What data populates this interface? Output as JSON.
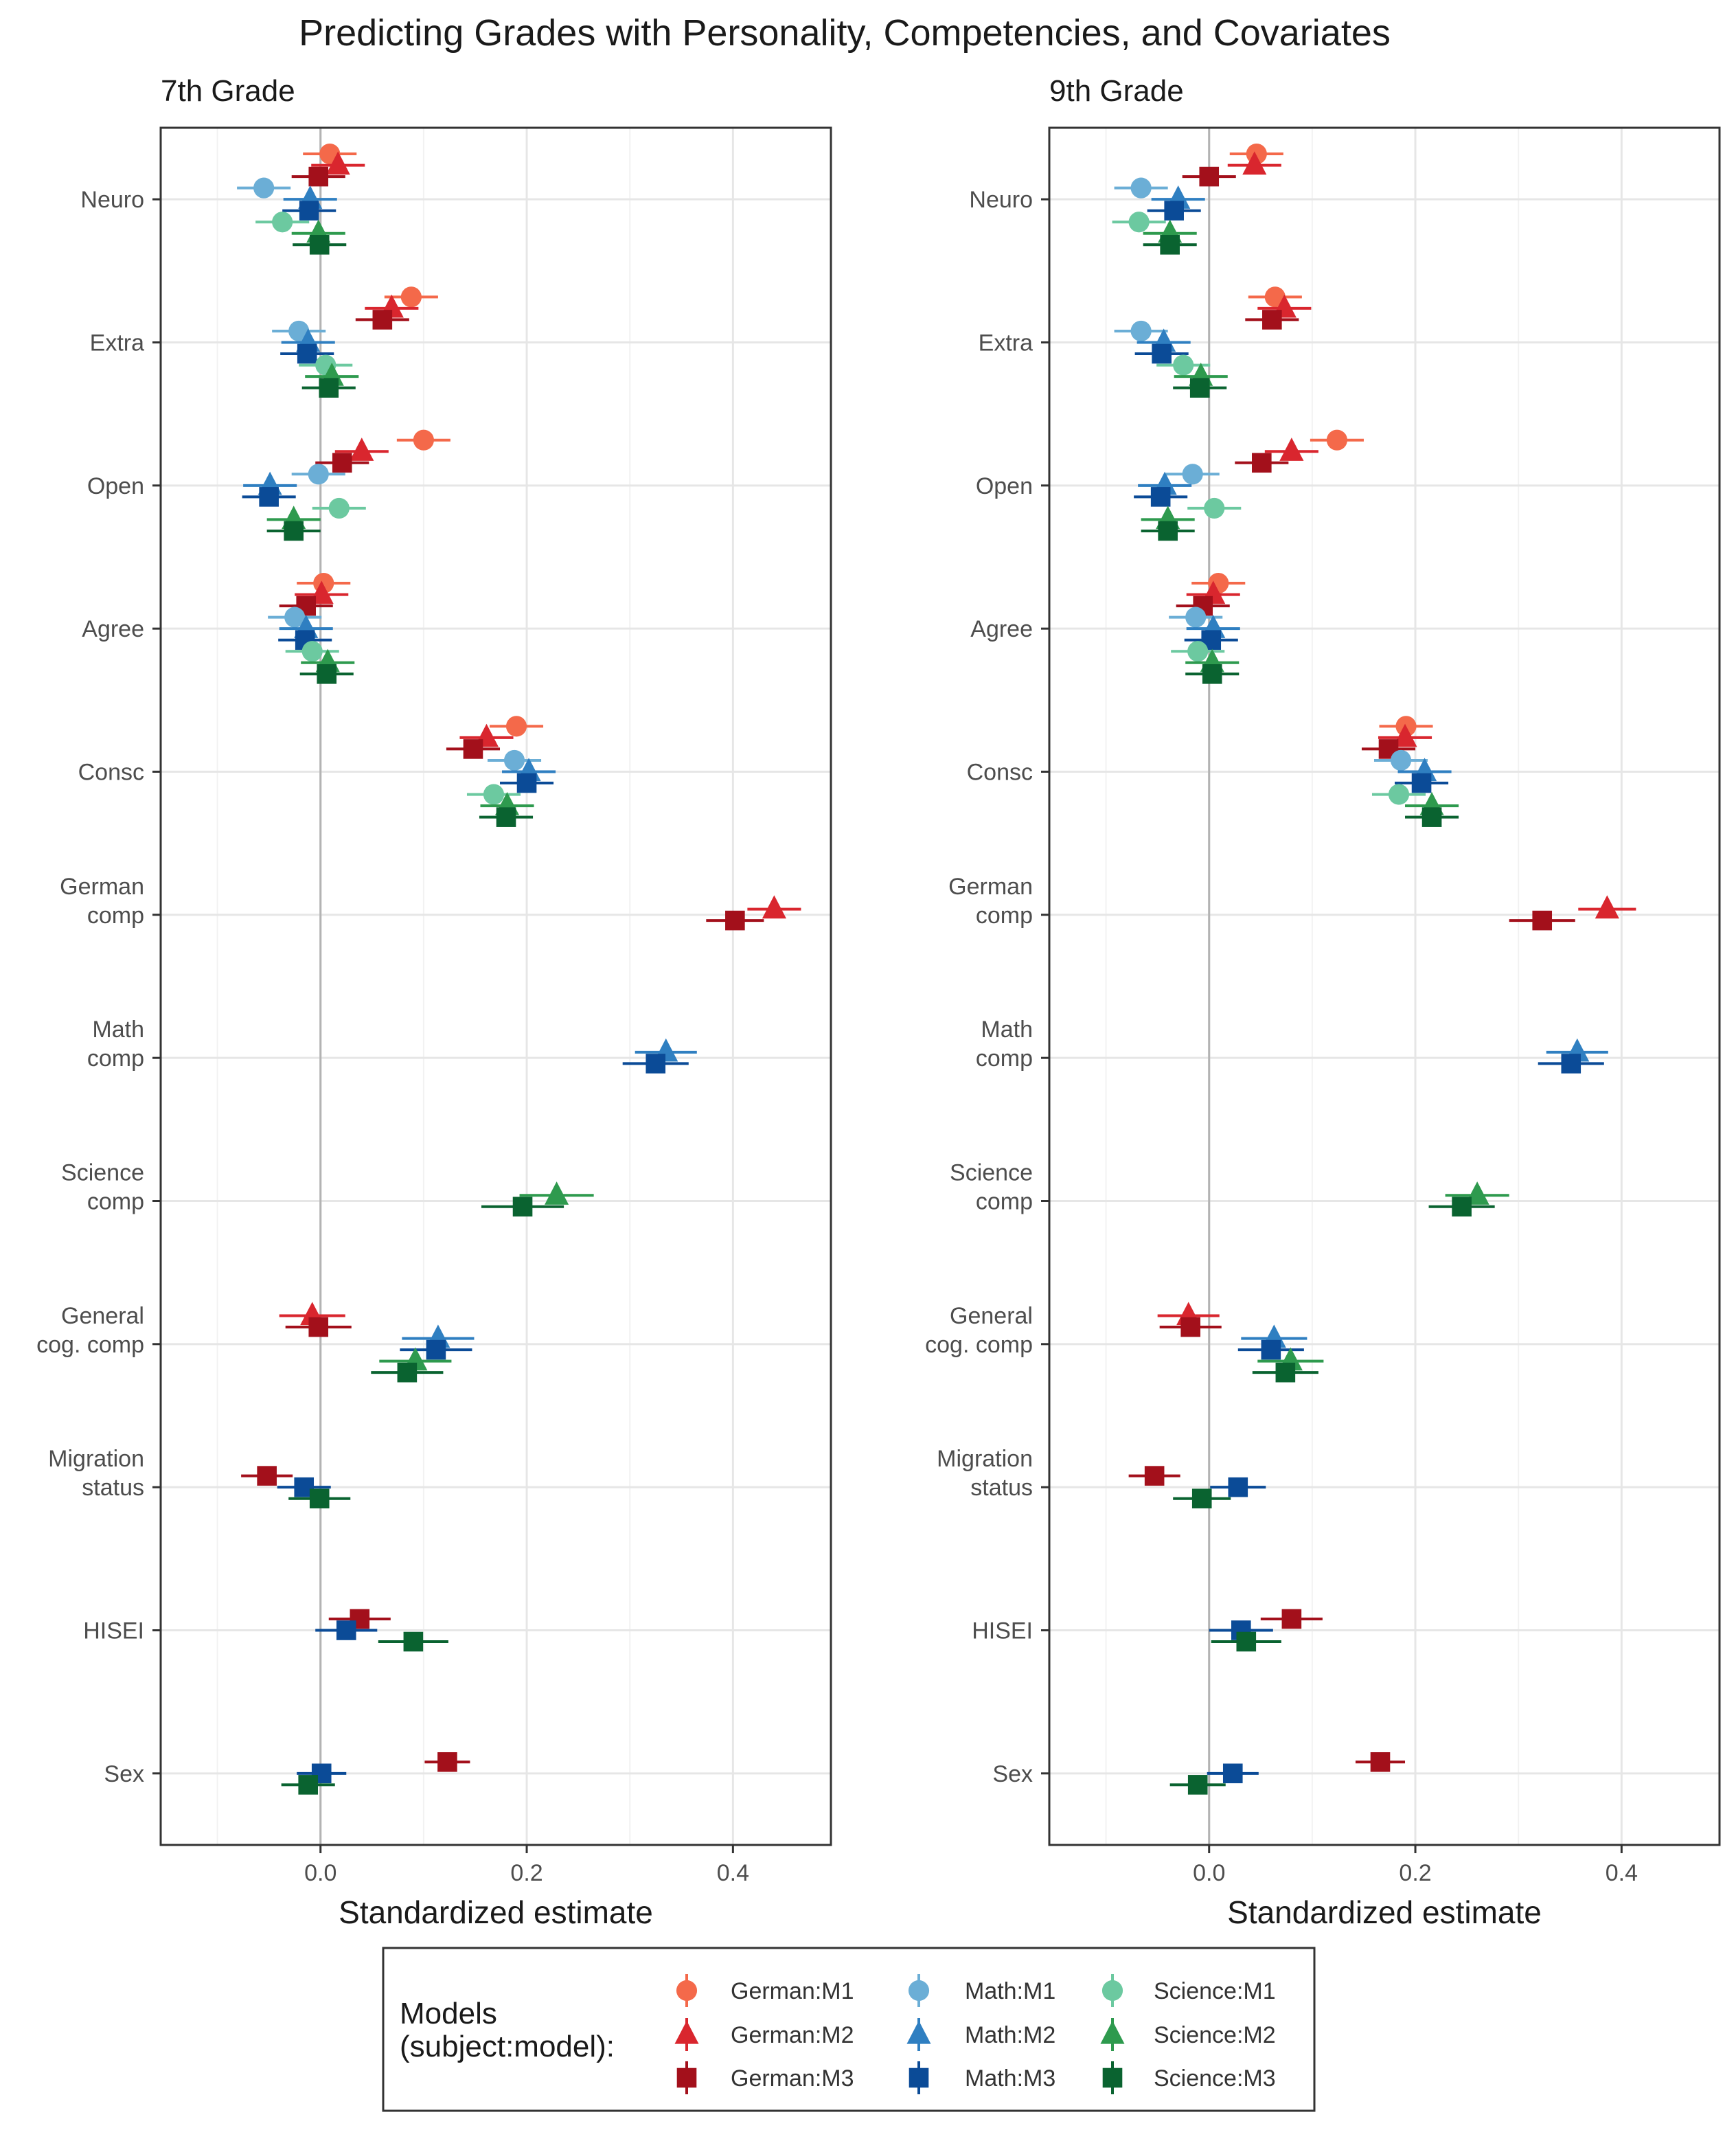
{
  "title": "Predicting Grades with Personality, Competencies, and Covariates",
  "legend": {
    "title_line1": "Models",
    "title_line2": "(subject:model):",
    "entries": [
      {
        "label": "German:M1",
        "color": "#F4694A",
        "shape": "circle"
      },
      {
        "label": "German:M2",
        "color": "#D9262E",
        "shape": "triangle"
      },
      {
        "label": "German:M3",
        "color": "#A3101B",
        "shape": "square"
      },
      {
        "label": "Math:M1",
        "color": "#6BAED6",
        "shape": "circle"
      },
      {
        "label": "Math:M2",
        "color": "#2F7FC1",
        "shape": "triangle"
      },
      {
        "label": "Math:M3",
        "color": "#0B4B97",
        "shape": "square"
      },
      {
        "label": "Science:M1",
        "color": "#6CC9A0",
        "shape": "circle"
      },
      {
        "label": "Science:M2",
        "color": "#2E9A4E",
        "shape": "triangle"
      },
      {
        "label": "Science:M3",
        "color": "#0A6330",
        "shape": "square"
      }
    ]
  },
  "chart_data": [
    {
      "type": "forest",
      "panel_title": "7th Grade",
      "xlabel": "Standardized estimate",
      "xlim": [
        -0.155,
        0.495
      ],
      "x_ticks": [
        0.0,
        0.2,
        0.4
      ],
      "x_tick_labels": [
        "0.0",
        "0.2",
        "0.4"
      ],
      "categories": [
        "Neuro",
        "Extra",
        "Open",
        "Agree",
        "Consc",
        "German comp",
        "Math comp",
        "Science comp",
        "General cog. comp",
        "Migration status",
        "HISEI",
        "Sex"
      ],
      "category_labels": [
        [
          "Neuro"
        ],
        [
          "Extra"
        ],
        [
          "Open"
        ],
        [
          "Agree"
        ],
        [
          "Consc"
        ],
        [
          "German",
          "comp"
        ],
        [
          "Math",
          "comp"
        ],
        [
          "Science",
          "comp"
        ],
        [
          "General",
          "cog. comp"
        ],
        [
          "Migration",
          "status"
        ],
        [
          "HISEI"
        ],
        [
          "Sex"
        ]
      ],
      "series_order": [
        "German:M1",
        "German:M2",
        "German:M3",
        "Math:M1",
        "Math:M2",
        "Math:M3",
        "Science:M1",
        "Science:M2",
        "Science:M3"
      ],
      "estimates": {
        "Neuro": [
          [
            0.009,
            0.026
          ],
          [
            0.017,
            0.026
          ],
          [
            -0.002,
            0.026
          ],
          [
            -0.055,
            0.026
          ],
          [
            -0.01,
            0.026
          ],
          [
            -0.011,
            0.026
          ],
          [
            -0.037,
            0.026
          ],
          [
            -0.002,
            0.026
          ],
          [
            -0.001,
            0.026
          ]
        ],
        "Extra": [
          [
            0.088,
            0.026
          ],
          [
            0.069,
            0.026
          ],
          [
            0.06,
            0.026
          ],
          [
            -0.021,
            0.026
          ],
          [
            -0.012,
            0.026
          ],
          [
            -0.013,
            0.026
          ],
          [
            0.005,
            0.026
          ],
          [
            0.011,
            0.026
          ],
          [
            0.008,
            0.026
          ]
        ],
        "Open": [
          [
            0.1,
            0.026
          ],
          [
            0.04,
            0.026
          ],
          [
            0.021,
            0.026
          ],
          [
            -0.002,
            0.026
          ],
          [
            -0.049,
            0.026
          ],
          [
            -0.05,
            0.026
          ],
          [
            0.018,
            0.026
          ],
          [
            -0.026,
            0.026
          ],
          [
            -0.026,
            0.026
          ]
        ],
        "Agree": [
          [
            0.003,
            0.026
          ],
          [
            0.001,
            0.026
          ],
          [
            -0.014,
            0.026
          ],
          [
            -0.025,
            0.026
          ],
          [
            -0.014,
            0.026
          ],
          [
            -0.015,
            0.026
          ],
          [
            -0.008,
            0.026
          ],
          [
            0.007,
            0.026
          ],
          [
            0.006,
            0.026
          ]
        ],
        "Consc": [
          [
            0.19,
            0.026
          ],
          [
            0.161,
            0.026
          ],
          [
            0.148,
            0.026
          ],
          [
            0.188,
            0.026
          ],
          [
            0.202,
            0.026
          ],
          [
            0.2,
            0.026
          ],
          [
            0.168,
            0.026
          ],
          [
            0.181,
            0.026
          ],
          [
            0.18,
            0.026
          ]
        ],
        "German comp": [
          null,
          [
            0.44,
            0.026
          ],
          [
            0.402,
            0.028
          ],
          null,
          null,
          null,
          null,
          null,
          null
        ],
        "Math comp": [
          null,
          null,
          null,
          null,
          [
            0.335,
            0.03
          ],
          [
            0.325,
            0.032
          ],
          null,
          null,
          null
        ],
        "Science comp": [
          null,
          null,
          null,
          null,
          null,
          null,
          null,
          [
            0.229,
            0.036
          ],
          [
            0.196,
            0.04
          ]
        ],
        "General cog. comp": [
          null,
          [
            -0.008,
            0.032
          ],
          [
            -0.002,
            0.032
          ],
          null,
          [
            0.114,
            0.035
          ],
          [
            0.112,
            0.035
          ],
          null,
          [
            0.092,
            0.035
          ],
          [
            0.084,
            0.035
          ]
        ],
        "Migration status": [
          null,
          null,
          [
            -0.052,
            0.025
          ],
          null,
          null,
          [
            -0.016,
            0.026
          ],
          null,
          null,
          [
            -0.001,
            0.03
          ]
        ],
        "HISEI": [
          null,
          null,
          [
            0.038,
            0.03
          ],
          null,
          null,
          [
            0.025,
            0.03
          ],
          null,
          null,
          [
            0.09,
            0.034
          ]
        ],
        "Sex": [
          null,
          null,
          [
            0.123,
            0.022
          ],
          null,
          null,
          [
            0.001,
            0.024
          ],
          null,
          null,
          [
            -0.012,
            0.026
          ]
        ]
      }
    },
    {
      "type": "forest",
      "panel_title": "9th Grade",
      "xlabel": "Standardized estimate",
      "xlim": [
        -0.155,
        0.495
      ],
      "x_ticks": [
        0.0,
        0.2,
        0.4
      ],
      "x_tick_labels": [
        "0.0",
        "0.2",
        "0.4"
      ],
      "categories": [
        "Neuro",
        "Extra",
        "Open",
        "Agree",
        "Consc",
        "German comp",
        "Math comp",
        "Science comp",
        "General cog. comp",
        "Migration status",
        "HISEI",
        "Sex"
      ],
      "category_labels": [
        [
          "Neuro"
        ],
        [
          "Extra"
        ],
        [
          "Open"
        ],
        [
          "Agree"
        ],
        [
          "Consc"
        ],
        [
          "German",
          "comp"
        ],
        [
          "Math",
          "comp"
        ],
        [
          "Science",
          "comp"
        ],
        [
          "General",
          "cog. comp"
        ],
        [
          "Migration",
          "status"
        ],
        [
          "HISEI"
        ],
        [
          "Sex"
        ]
      ],
      "series_order": [
        "German:M1",
        "German:M2",
        "German:M3",
        "Math:M1",
        "Math:M2",
        "Math:M3",
        "Science:M1",
        "Science:M2",
        "Science:M3"
      ],
      "estimates": {
        "Neuro": [
          [
            0.046,
            0.026
          ],
          [
            0.044,
            0.026
          ],
          [
            0.0,
            0.026
          ],
          [
            -0.066,
            0.026
          ],
          [
            -0.03,
            0.026
          ],
          [
            -0.034,
            0.026
          ],
          [
            -0.068,
            0.026
          ],
          [
            -0.038,
            0.026
          ],
          [
            -0.038,
            0.026
          ]
        ],
        "Extra": [
          [
            0.064,
            0.026
          ],
          [
            0.073,
            0.026
          ],
          [
            0.061,
            0.026
          ],
          [
            -0.066,
            0.026
          ],
          [
            -0.044,
            0.026
          ],
          [
            -0.046,
            0.026
          ],
          [
            -0.025,
            0.026
          ],
          [
            -0.008,
            0.026
          ],
          [
            -0.009,
            0.026
          ]
        ],
        "Open": [
          [
            0.124,
            0.026
          ],
          [
            0.08,
            0.026
          ],
          [
            0.051,
            0.026
          ],
          [
            -0.016,
            0.026
          ],
          [
            -0.043,
            0.026
          ],
          [
            -0.047,
            0.026
          ],
          [
            0.005,
            0.026
          ],
          [
            -0.04,
            0.026
          ],
          [
            -0.04,
            0.026
          ]
        ],
        "Agree": [
          [
            0.009,
            0.026
          ],
          [
            0.004,
            0.026
          ],
          [
            -0.006,
            0.026
          ],
          [
            -0.013,
            0.026
          ],
          [
            0.004,
            0.026
          ],
          [
            0.002,
            0.026
          ],
          [
            -0.011,
            0.026
          ],
          [
            0.003,
            0.026
          ],
          [
            0.003,
            0.026
          ]
        ],
        "Consc": [
          [
            0.191,
            0.026
          ],
          [
            0.19,
            0.026
          ],
          [
            0.174,
            0.026
          ],
          [
            0.186,
            0.026
          ],
          [
            0.209,
            0.026
          ],
          [
            0.206,
            0.026
          ],
          [
            0.184,
            0.026
          ],
          [
            0.216,
            0.026
          ],
          [
            0.216,
            0.026
          ]
        ],
        "German comp": [
          null,
          [
            0.386,
            0.028
          ],
          [
            0.323,
            0.032
          ],
          null,
          null,
          null,
          null,
          null,
          null
        ],
        "Math comp": [
          null,
          null,
          null,
          null,
          [
            0.357,
            0.03
          ],
          [
            0.351,
            0.032
          ],
          null,
          null,
          null
        ],
        "Science comp": [
          null,
          null,
          null,
          null,
          null,
          null,
          null,
          [
            0.26,
            0.031
          ],
          [
            0.245,
            0.032
          ]
        ],
        "General cog. comp": [
          null,
          [
            -0.02,
            0.03
          ],
          [
            -0.018,
            0.03
          ],
          null,
          [
            0.063,
            0.032
          ],
          [
            0.06,
            0.032
          ],
          null,
          [
            0.079,
            0.032
          ],
          [
            0.074,
            0.032
          ]
        ],
        "Migration status": [
          null,
          null,
          [
            -0.053,
            0.025
          ],
          null,
          null,
          [
            0.028,
            0.027
          ],
          null,
          null,
          [
            -0.007,
            0.028
          ]
        ],
        "HISEI": [
          null,
          null,
          [
            0.08,
            0.03
          ],
          null,
          null,
          [
            0.031,
            0.031
          ],
          null,
          null,
          [
            0.036,
            0.034
          ]
        ],
        "Sex": [
          null,
          null,
          [
            0.166,
            0.024
          ],
          null,
          null,
          [
            0.023,
            0.025
          ],
          null,
          null,
          [
            -0.011,
            0.027
          ]
        ]
      }
    }
  ]
}
